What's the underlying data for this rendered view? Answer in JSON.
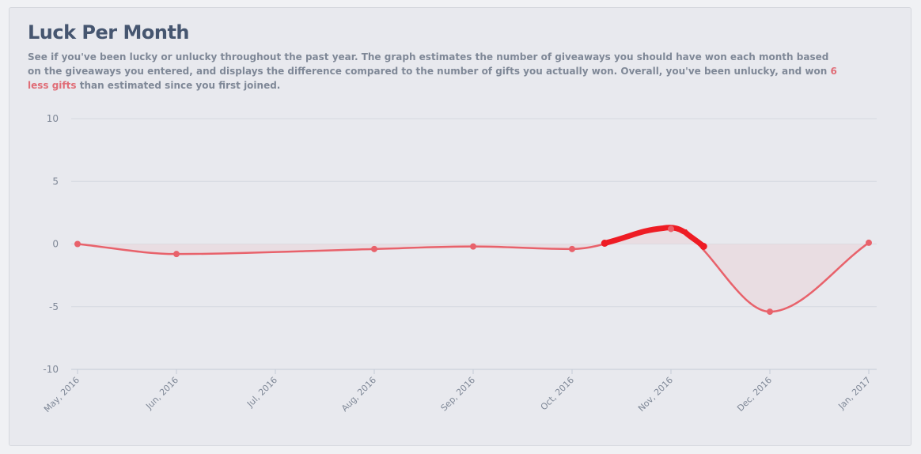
{
  "title": "Luck Per Month",
  "description": {
    "before": "See if you've been lucky or unlucky throughout the past year. The graph estimates the number of giveaways you should have won each month based on the giveaways you entered, and displays the difference compared to the number of gifts you actually won. Overall, you've been unlucky, and won ",
    "highlight": "6 less gifts",
    "after": " than estimated since you first joined."
  },
  "colors": {
    "line": "#e8626b",
    "fill": "#e8d9df",
    "highlight_text": "#e06d77",
    "annotation": "#ee1c24"
  },
  "chart_data": {
    "type": "line",
    "categories": [
      "May, 2016",
      "Jun, 2016",
      "Jul, 2016",
      "Aug, 2016",
      "Sep, 2016",
      "Oct, 2016",
      "Nov, 2016",
      "Dec, 2016",
      "Jan, 2017"
    ],
    "series": [
      {
        "values": [
          0,
          -0.8,
          null,
          -0.4,
          -0.2,
          -0.4,
          1.2,
          -5.4,
          0.1
        ]
      }
    ],
    "ylim": [
      -10,
      10
    ],
    "yticks": [
      10,
      5,
      0,
      -5,
      -10
    ],
    "grid": true,
    "legend": "none",
    "annotation": "hand-drawn red highlight over the Nov, 2016 peak"
  }
}
